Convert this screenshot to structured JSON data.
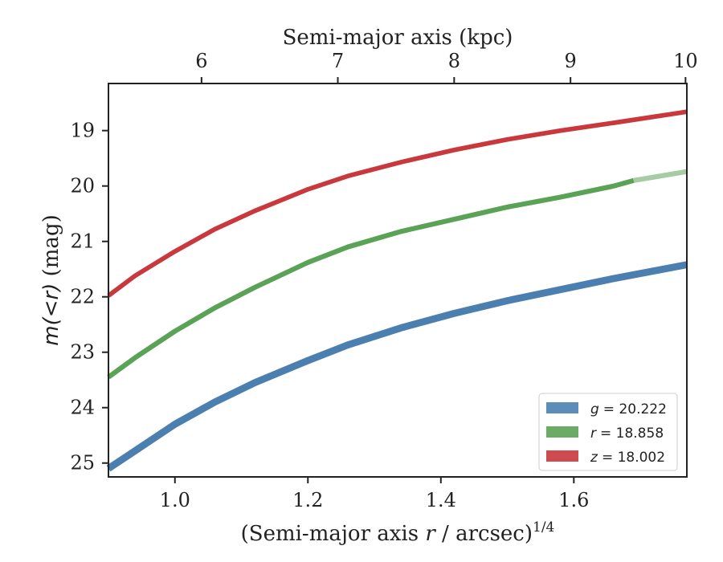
{
  "chart_data": {
    "type": "line",
    "title": "",
    "xlabel": "(Semi-major axis r / arcsec)^1/4",
    "xlabel_parts": {
      "pre": "(Semi-major axis ",
      "var": "r",
      "post": " / arcsec)",
      "sup": "1/4"
    },
    "ylabel": "m(<r) (mag)",
    "ylabel_parts": {
      "math": "m(<r)",
      "unit": " (mag)"
    },
    "top_xlabel": "Semi-major axis (kpc)",
    "xlim": [
      0.9,
      1.77
    ],
    "ylim": [
      25.25,
      18.15
    ],
    "y_inverted": true,
    "x_ticks": [
      1.0,
      1.2,
      1.4,
      1.6
    ],
    "x_tick_labels": [
      "1.0",
      "1.2",
      "1.4",
      "1.6"
    ],
    "y_ticks": [
      19,
      20,
      21,
      22,
      23,
      24,
      25
    ],
    "y_tick_labels": [
      "19",
      "20",
      "21",
      "22",
      "23",
      "24",
      "25"
    ],
    "top_x_ticks_kpc": [
      6,
      7,
      8,
      9,
      10
    ],
    "top_x_tick_labels": [
      "6",
      "7",
      "8",
      "9",
      "10"
    ],
    "kpc_to_x": {
      "6": 1.04,
      "7": 1.245,
      "8": 1.42,
      "9": 1.595,
      "10": 1.768
    },
    "grid": false,
    "legend_position": "bottom-right",
    "series": [
      {
        "name": "g = 20.222",
        "legend_var": "g",
        "legend_value": "= 20.222",
        "color": "#4a7fb0",
        "band_width": 1.7,
        "x": [
          0.9,
          0.94,
          1.0,
          1.06,
          1.12,
          1.2,
          1.26,
          1.34,
          1.42,
          1.5,
          1.58,
          1.66,
          1.77
        ],
        "y": [
          25.1,
          24.78,
          24.3,
          23.9,
          23.55,
          23.15,
          22.87,
          22.56,
          22.3,
          22.07,
          21.87,
          21.67,
          21.42
        ]
      },
      {
        "name": "r = 18.858",
        "legend_var": "r",
        "legend_value": "= 18.858",
        "color": "#5aa255",
        "faded_color": "#a7cca3",
        "fade_after_x": 1.69,
        "band_width": 1.2,
        "x": [
          0.9,
          0.94,
          1.0,
          1.06,
          1.12,
          1.2,
          1.26,
          1.34,
          1.42,
          1.5,
          1.58,
          1.66,
          1.69,
          1.77
        ],
        "y": [
          23.45,
          23.1,
          22.62,
          22.2,
          21.83,
          21.38,
          21.1,
          20.82,
          20.6,
          20.38,
          20.2,
          20.0,
          19.9,
          19.74
        ]
      },
      {
        "name": "z = 18.002",
        "legend_var": "z",
        "legend_value": "= 18.002",
        "color": "#c9383c",
        "band_width": 1.1,
        "x": [
          0.9,
          0.94,
          1.0,
          1.06,
          1.12,
          1.2,
          1.26,
          1.34,
          1.42,
          1.5,
          1.58,
          1.66,
          1.77
        ],
        "y": [
          21.98,
          21.62,
          21.18,
          20.78,
          20.45,
          20.06,
          19.82,
          19.57,
          19.35,
          19.16,
          19.0,
          18.86,
          18.66
        ]
      }
    ]
  }
}
